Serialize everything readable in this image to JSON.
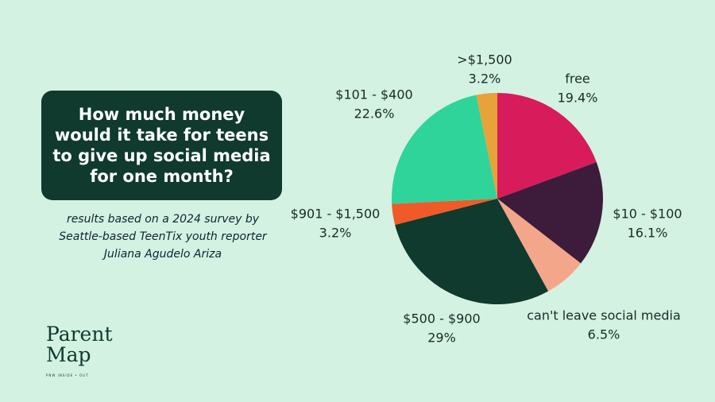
{
  "chart_data": {
    "type": "pie",
    "title": "How much money would it take for teens to give up social media for one month?",
    "subtitle": "results based on a 2024 survey by Seattle-based TeenTix youth reporter Juliana Agudelo Ariza",
    "categories": [
      "free",
      "$10 - $100",
      "can't leave social media",
      "$500 - $900",
      "$901 - $1,500",
      "$101 - $400",
      ">$1,500"
    ],
    "values": [
      19.4,
      16.1,
      6.5,
      29,
      3.2,
      22.6,
      3.2
    ],
    "value_labels": [
      "19.4%",
      "16.1%",
      "6.5%",
      "29%",
      "3.2%",
      "22.6%",
      "3.2%"
    ],
    "colors": [
      "#d81b5a",
      "#3d1b3b",
      "#f4a68a",
      "#0f3a2d",
      "#f05a28",
      "#2fd49a",
      "#e8a23a"
    ]
  },
  "logo": {
    "line1": "Parent",
    "line2": "Map",
    "tagline": "PNW INSIDE • OUT"
  }
}
